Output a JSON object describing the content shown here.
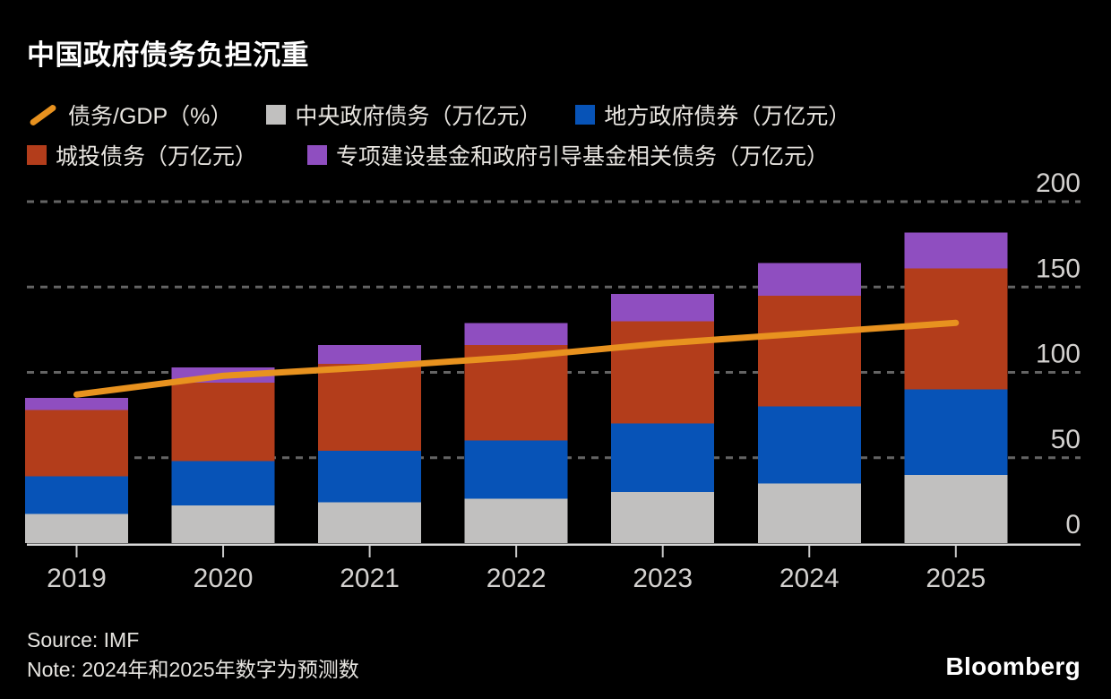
{
  "title": "中国政府债务负担沉重",
  "legend": {
    "items": [
      {
        "label": "债务/GDP（%）",
        "marker": "line",
        "color": "#e8921f"
      },
      {
        "label": "中央政府债务（万亿元）",
        "marker": "square",
        "color": "#c1c0bf"
      },
      {
        "label": "地方政府债券（万亿元）",
        "marker": "square",
        "color": "#0753b7"
      },
      {
        "label": "城投债务（万亿元）",
        "marker": "square",
        "color": "#b33d1b"
      },
      {
        "label": "专项建设基金和政府引导基金相关债务（万亿元）",
        "marker": "square",
        "color": "#8f4ec0"
      }
    ]
  },
  "chart_data": {
    "type": "combo: stacked-bar + line",
    "title": "中国政府债务负担沉重",
    "categories": [
      "2019",
      "2020",
      "2021",
      "2022",
      "2023",
      "2024",
      "2025"
    ],
    "series": [
      {
        "key": "central-govt-debt",
        "name": "中央政府债务（万亿元）",
        "type": "bar",
        "stack_order": 1,
        "color": "#c1c0bf",
        "values": [
          17,
          22,
          24,
          26,
          30,
          35,
          40
        ]
      },
      {
        "key": "local-govt-bonds",
        "name": "地方政府债券（万亿元）",
        "type": "bar",
        "stack_order": 2,
        "color": "#0753b7",
        "values": [
          22,
          26,
          30,
          34,
          40,
          45,
          50
        ]
      },
      {
        "key": "lgfv-debt",
        "name": "城投债务（万亿元）",
        "type": "bar",
        "stack_order": 3,
        "color": "#b33d1b",
        "values": [
          39,
          46,
          51,
          56,
          60,
          65,
          71
        ]
      },
      {
        "key": "special-funds-debt",
        "name": "专项建设基金和政府引导基金相关债务（万亿元）",
        "type": "bar",
        "stack_order": 4,
        "color": "#8f4ec0",
        "values": [
          7,
          9,
          11,
          13,
          16,
          19,
          21
        ]
      },
      {
        "key": "debt-to-gdp-line",
        "name": "债务/GDP（%）",
        "type": "line",
        "color": "#e8921f",
        "values": [
          87,
          98,
          103,
          109,
          117,
          123,
          129
        ]
      }
    ],
    "stack_totals": [
      85,
      103,
      116,
      129,
      146,
      164,
      182
    ],
    "y_axis": {
      "side": "right",
      "range": [
        0,
        200
      ],
      "ticks": [
        0,
        50,
        100,
        150,
        200
      ]
    },
    "x_axis": {
      "ticks": [
        "2019",
        "2020",
        "2021",
        "2022",
        "2023",
        "2024",
        "2025"
      ]
    },
    "grid": "horizontal-dashed",
    "legend_position": "top-left",
    "colors": {
      "background": "#000000",
      "grid": "#646464",
      "axis_line": "#d8d8d8",
      "tick_label": "#d3d1cf"
    }
  },
  "footer": {
    "source": "Source: IMF",
    "note": "Note: 2024年和2025年数字为预测数",
    "brand": "Bloomberg"
  }
}
